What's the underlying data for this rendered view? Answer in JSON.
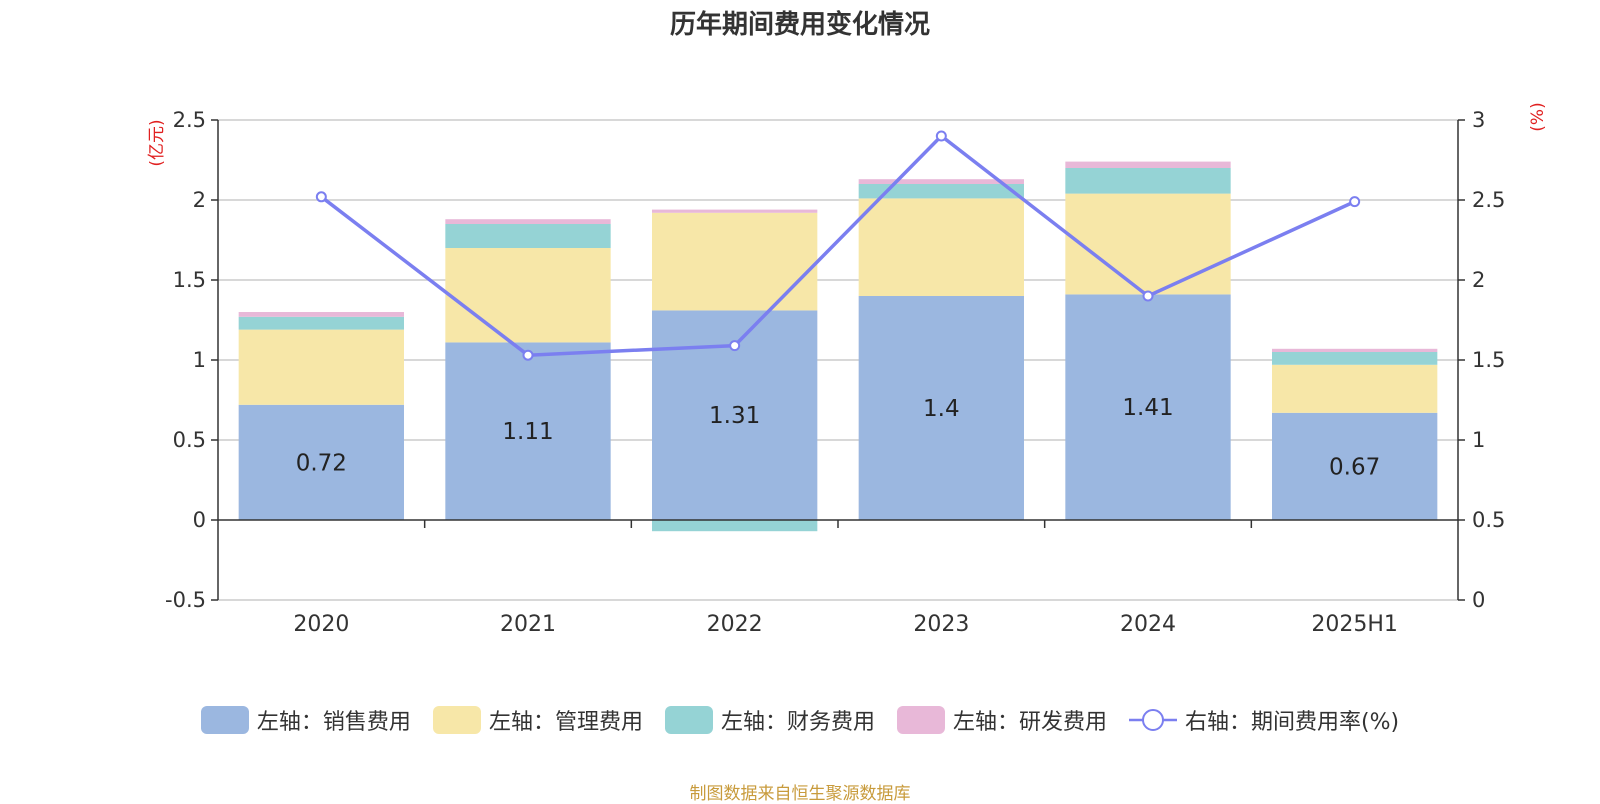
{
  "chart_data": {
    "type": "bar",
    "title": "历年期间费用变化情况",
    "categories": [
      "2020",
      "2021",
      "2022",
      "2023",
      "2024",
      "2025H1"
    ],
    "left_axis": {
      "unit": "(亿元)",
      "ylim": [
        -0.5,
        2.5
      ],
      "ticks": [
        "-0.5",
        "0",
        "0.5",
        "1",
        "1.5",
        "2",
        "2.5"
      ]
    },
    "right_axis": {
      "unit": "(%)",
      "ylim": [
        0,
        3
      ],
      "ticks": [
        "0",
        "0.5",
        "1",
        "1.5",
        "2",
        "2.5",
        "3"
      ]
    },
    "series": [
      {
        "name": "左轴：销售费用",
        "type": "bar",
        "color": "#9bb7e0",
        "values": [
          0.72,
          1.11,
          1.31,
          1.4,
          1.41,
          0.67
        ],
        "labels": [
          "0.72",
          "1.11",
          "1.31",
          "1.4",
          "1.41",
          "0.67"
        ]
      },
      {
        "name": "左轴：管理费用",
        "type": "bar",
        "color": "#f7e7a8",
        "values": [
          0.47,
          0.59,
          0.61,
          0.61,
          0.63,
          0.3
        ]
      },
      {
        "name": "左轴：财务费用",
        "type": "bar",
        "color": "#95d3d5",
        "values": [
          0.08,
          0.15,
          -0.07,
          0.09,
          0.16,
          0.08
        ]
      },
      {
        "name": "左轴：研发费用",
        "type": "bar",
        "color": "#e8b8d8",
        "values": [
          0.03,
          0.03,
          0.02,
          0.03,
          0.04,
          0.02
        ]
      },
      {
        "name": "右轴：期间费用率(%)",
        "type": "line",
        "color": "#7b7ff0",
        "values": [
          2.52,
          1.53,
          1.59,
          2.9,
          1.9,
          2.49
        ]
      }
    ],
    "grid": true,
    "legend_position": "bottom"
  },
  "footer": {
    "source": "制图数据来自恒生聚源数据库"
  }
}
